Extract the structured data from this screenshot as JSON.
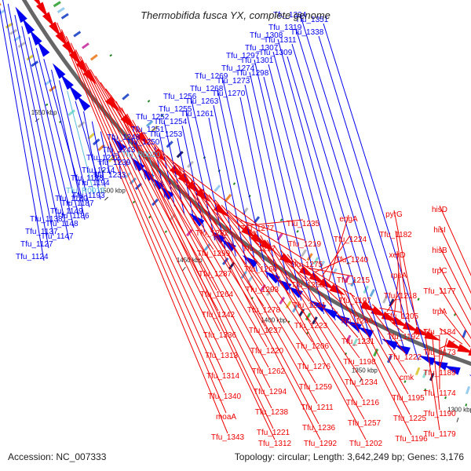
{
  "title": "Thermobifida fusca YX, complete genome",
  "accession": "Accession: NC_007333",
  "summary": "Topology: circular; Length: 3,642,249 bp; Genes: 3,176",
  "colors": {
    "forward": "#0000ee",
    "reverse": "#ee0000",
    "rna": "#55bbdd",
    "backbone": "#666666",
    "text": "#222222"
  },
  "ticks": [
    "1300 kbp",
    "1350 kbp",
    "1400 kbp",
    "1450 kbp",
    "1500 kbp",
    "1550 kbp"
  ],
  "forward_genes": [
    "Tfu_1124",
    "Tfu_1127",
    "Tfu_1137",
    "Tfu_1138",
    "Tfu_1147",
    "Tfu_1148",
    "Tfu_1149",
    "Tfu_1180",
    "Tfu_1186",
    "Tfu_1187",
    "Tfu_R0019",
    "Tfu_1188",
    "Tfu_1193",
    "Tfu_1194",
    "Tfu_1214",
    "Tfu_1232",
    "Tfu_1233",
    "Tfu_1239",
    "Tfu_1243",
    "Tfu_1248",
    "Tfu_R0020",
    "Tfu_1250",
    "Tfu_1251",
    "Tfu_1252",
    "Tfu_1253",
    "Tfu_1254",
    "Tfu_1255",
    "Tfu_1256",
    "Tfu_1261",
    "Tfu_1263",
    "Tfu_1268",
    "Tfu_1269",
    "Tfu_1270",
    "Tfu_1273",
    "Tfu_1274",
    "Tfu_1297",
    "Tfu_1298",
    "Tfu_1301",
    "Tfu_1307",
    "Tfu_1308",
    "Tfu_1309",
    "Tfu_1311",
    "Tfu_1319",
    "Tfu_1334",
    "Tfu_1338",
    "Tfu_1351"
  ],
  "reverse_genes": [
    "hisD",
    "hisI",
    "hisB",
    "trpC",
    "Tfu_1177",
    "trpA",
    "Tfu_1184",
    "Tfu_1173",
    "Tfu_1189",
    "Tfu_1174",
    "Tfu_1190",
    "Tfu_1179",
    "pyrG",
    "Tfu_1182",
    "xerD",
    "rpsA",
    "Tfu_1218",
    "Tfu_1205",
    "Tfu_1192",
    "Tfu_1222",
    "cmk",
    "Tfu_1195",
    "Tfu_1225",
    "Tfu_1196",
    "engA",
    "Tfu_1224",
    "Tfu_1240",
    "Tfu_1215",
    "Tfu_1197",
    "Tfu_1246",
    "Tfu_1231",
    "Tfu_1198",
    "Tfu_1234",
    "Tfu_1216",
    "Tfu_1257",
    "Tfu_1202",
    "Tfu_1235",
    "Tfu_1219",
    "Tfu_1275",
    "Tfu_1258",
    "Tfu_1241",
    "Tfu_1223",
    "Tfu_1206",
    "Tfu_1276",
    "Tfu_1259",
    "Tfu_1211",
    "Tfu_1236",
    "Tfu_1292",
    "Tfu_1277",
    "Tfu_1217",
    "Tfu_1260",
    "Tfu_1293",
    "Tfu_1278",
    "Tfu_1237",
    "Tfu_1220",
    "Tfu_1262",
    "Tfu_1294",
    "Tfu_1238",
    "Tfu_1221",
    "Tfu_1312",
    "Tfu_1282",
    "Tfu_1299",
    "Tfu_1287",
    "Tfu_1264",
    "Tfu_1242",
    "Tfu_1336",
    "Tfu_1313",
    "Tfu_1314",
    "Tfu_1340",
    "moaA",
    "Tfu_1343"
  ]
}
